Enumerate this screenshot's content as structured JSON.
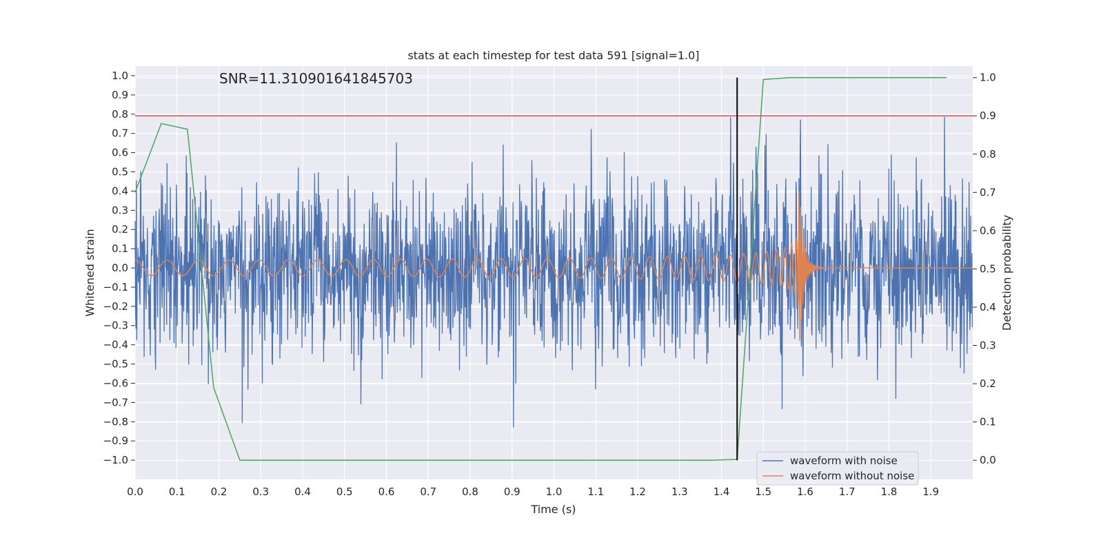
{
  "chart_data": {
    "type": "line",
    "title": "stats at each timestep for test data 591 [signal=1.0]",
    "annotation": "SNR=11.310901641845703",
    "xlabel": "Time (s)",
    "ylabel_left": "Whitened strain",
    "ylabel_right": "Detection probability",
    "xlim": [
      0.0,
      2.0
    ],
    "ylim_left": [
      -1.1,
      1.05
    ],
    "ylim_right": [
      -0.05,
      1.03
    ],
    "grid": true,
    "legend_position": "bottom-right",
    "x_ticks": [
      "0.0",
      "0.1",
      "0.2",
      "0.3",
      "0.4",
      "0.5",
      "0.6",
      "0.7",
      "0.8",
      "0.9",
      "1.0",
      "1.1",
      "1.2",
      "1.3",
      "1.4",
      "1.5",
      "1.6",
      "1.7",
      "1.8",
      "1.9"
    ],
    "y_left_ticks": [
      "−1.0",
      "−0.9",
      "−0.8",
      "−0.7",
      "−0.6",
      "−0.5",
      "−0.4",
      "−0.3",
      "−0.2",
      "−0.1",
      "0.0",
      "0.1",
      "0.2",
      "0.3",
      "0.4",
      "0.5",
      "0.6",
      "0.7",
      "0.8",
      "0.9",
      "1.0"
    ],
    "y_right_ticks": [
      "0.0",
      "0.1",
      "0.2",
      "0.3",
      "0.4",
      "0.5",
      "0.6",
      "0.7",
      "0.8",
      "0.9",
      "1.0"
    ],
    "series": [
      {
        "name": "waveform with noise",
        "color": "#4c72b0",
        "axis": "left",
        "kind": "noise",
        "approx_amplitude_std": 0.22,
        "approx_range": [
          -0.92,
          0.84
        ]
      },
      {
        "name": "waveform without noise",
        "color": "#dd8452",
        "axis": "left",
        "kind": "chirp",
        "start_amplitude": 0.04,
        "peak_amplitude": 0.45,
        "merger_time": 1.585
      },
      {
        "name": "",
        "color": "#55a868",
        "axis": "right",
        "kind": "detection-probability",
        "x": [
          0.0,
          0.0625,
          0.125,
          0.1875,
          0.25,
          0.3,
          0.5,
          1.0,
          1.375,
          1.4375,
          1.5,
          1.5625,
          1.6,
          1.9375
        ],
        "y": [
          0.7,
          0.88,
          0.865,
          0.19,
          0.0,
          0.0,
          0.0,
          0.0,
          0.0,
          0.002,
          0.995,
          1.0,
          1.0,
          1.0
        ]
      }
    ],
    "threshold_line": {
      "y_right": 0.9,
      "color": "#c44e52"
    },
    "vertical_marker": {
      "x": 1.4375,
      "y_right_range": [
        0.0,
        1.0
      ],
      "color": "#000000"
    }
  },
  "colors": {
    "plot_background": "#eaeaf2",
    "grid": "#ffffff",
    "text": "#262626"
  }
}
